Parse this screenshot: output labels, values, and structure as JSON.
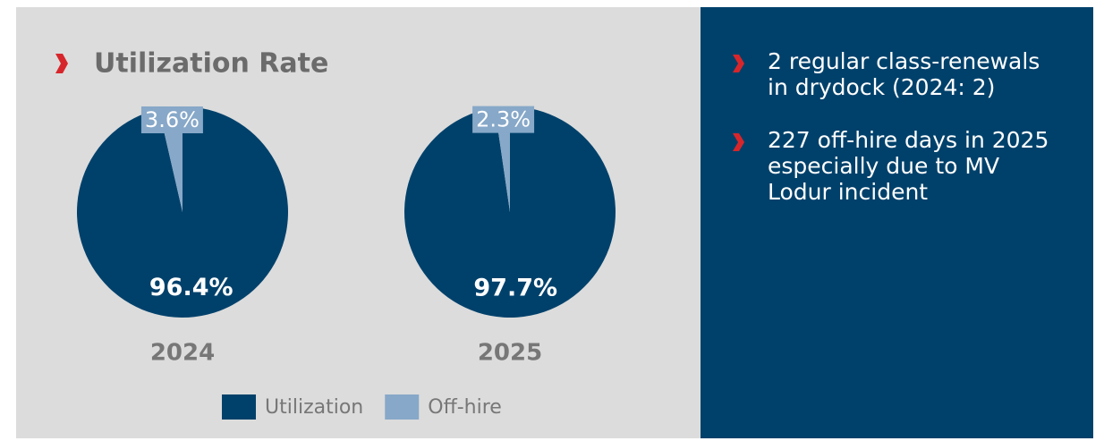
{
  "title": "Utilization Rate",
  "chart_data": [
    {
      "type": "pie",
      "title": "2024",
      "categories": [
        "Utilization",
        "Off-hire"
      ],
      "values": [
        96.4,
        3.6
      ],
      "value_labels": [
        "96.4%",
        "3.6%"
      ],
      "colors": [
        "#00416b",
        "#87a8c8"
      ]
    },
    {
      "type": "pie",
      "title": "2025",
      "categories": [
        "Utilization",
        "Off-hire"
      ],
      "values": [
        97.7,
        2.3
      ],
      "value_labels": [
        "97.7%",
        "2.3%"
      ],
      "colors": [
        "#00416b",
        "#87a8c8"
      ]
    }
  ],
  "bullets": [
    "2 regular class-renewals in drydock (2024: 2)",
    "227 off-hire days in 2025 especially due to MV Lodur incident"
  ]
}
